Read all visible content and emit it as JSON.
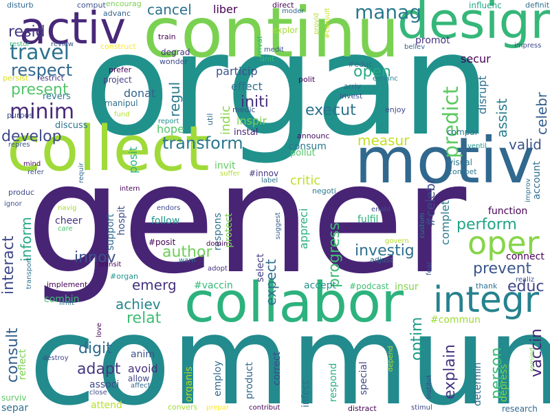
{
  "words": [
    {
      "text": "organ",
      "color": "#21918c"
    },
    {
      "text": "gener",
      "color": "#482475"
    },
    {
      "text": "commun",
      "color": "#238a8d"
    },
    {
      "text": "continu",
      "color": "#7ad151"
    },
    {
      "text": "collabor",
      "color": "#2db27d"
    },
    {
      "text": "motiv",
      "color": "#31688e"
    },
    {
      "text": "collect",
      "color": "#a0da39"
    },
    {
      "text": "design",
      "color": "#35b779"
    },
    {
      "text": "activ",
      "color": "#482878"
    },
    {
      "text": "integr",
      "color": "#26828e"
    },
    {
      "text": "travel",
      "color": "#2c728e"
    },
    {
      "text": "oper",
      "color": "#86d549"
    },
    {
      "text": "respect",
      "color": "#31688e"
    },
    {
      "text": "minim",
      "color": "#482878"
    },
    {
      "text": "present",
      "color": "#52c569"
    },
    {
      "text": "predict",
      "color": "#5ec962"
    },
    {
      "text": "manag",
      "color": "#2a788e"
    },
    {
      "text": "resid",
      "color": "#443a83"
    },
    {
      "text": "cancel",
      "color": "#2c728e"
    },
    {
      "text": "develop",
      "color": "#3e4989"
    },
    {
      "text": "transform",
      "color": "#2a788e"
    },
    {
      "text": "author",
      "color": "#6ece58"
    },
    {
      "text": "investig",
      "color": "#2d708e"
    },
    {
      "text": "perform",
      "color": "#20a486"
    },
    {
      "text": "prevent",
      "color": "#39558c"
    },
    {
      "text": "educ",
      "color": "#414487"
    },
    {
      "text": "relat",
      "color": "#3fbc73"
    },
    {
      "text": "achiev",
      "color": "#25858e"
    },
    {
      "text": "emerg",
      "color": "#46327e"
    },
    {
      "text": "innov",
      "color": "#3b528b"
    },
    {
      "text": "digit",
      "color": "#306a8e"
    },
    {
      "text": "adapt",
      "color": "#453781"
    },
    {
      "text": "measur",
      "color": "#c2df23"
    },
    {
      "text": "execut",
      "color": "#2c728e"
    },
    {
      "text": "open",
      "color": "#25ab82"
    },
    {
      "text": "valid",
      "color": "#3b528b"
    },
    {
      "text": "celebr",
      "color": "#35608d"
    },
    {
      "text": "vaccin",
      "color": "#482475"
    },
    {
      "text": "person",
      "color": "#3aba76"
    },
    {
      "text": "explain",
      "color": "#463480"
    },
    {
      "text": "optim",
      "color": "#1f9a8a"
    },
    {
      "text": "progress",
      "color": "#3fbc73"
    },
    {
      "text": "expect",
      "color": "#2e6e8e"
    },
    {
      "text": "consult",
      "color": "#34608d"
    },
    {
      "text": "interact",
      "color": "#3e4989"
    },
    {
      "text": "inform",
      "color": "#22a884"
    },
    {
      "text": "regul",
      "color": "#2a788e"
    },
    {
      "text": "initi",
      "color": "#472d7b"
    },
    {
      "text": "indic",
      "color": "#89d548"
    },
    {
      "text": "assist",
      "color": "#277f8e"
    },
    {
      "text": "critic",
      "color": "#bddf26"
    },
    {
      "text": "liber",
      "color": "#440154"
    },
    {
      "text": "particip",
      "color": "#3b528b"
    },
    {
      "text": "effect",
      "color": "#2e6f8e"
    },
    {
      "text": "inspir",
      "color": "#75d054"
    },
    {
      "text": "donat",
      "color": "#33638d"
    },
    {
      "text": "hope",
      "color": "#52c569"
    },
    {
      "text": "posit",
      "color": "#2db27d"
    },
    {
      "text": "secur",
      "color": "#440154"
    },
    {
      "text": "promot",
      "color": "#46337f"
    },
    {
      "text": "disrupt",
      "color": "#2e6f8e"
    },
    {
      "text": "consum",
      "color": "#2a788e"
    },
    {
      "text": "invit",
      "color": "#63cb5f"
    },
    {
      "text": "#innov",
      "color": "#46337f"
    },
    {
      "text": "#celebr",
      "color": "#3e4a89"
    },
    {
      "text": "complet",
      "color": "#2a788e"
    },
    {
      "text": "appreci",
      "color": "#29af7f"
    },
    {
      "text": "respons",
      "color": "#2c728e"
    },
    {
      "text": "protect",
      "color": "#7ad151"
    },
    {
      "text": "support",
      "color": "#2f6b8e"
    },
    {
      "text": "hospit",
      "color": "#3d4e8a"
    },
    {
      "text": "follow",
      "color": "#1f948c"
    },
    {
      "text": "fulfil",
      "color": "#2db27d"
    },
    {
      "text": "function",
      "color": "#440154"
    },
    {
      "text": "connect",
      "color": "#440154"
    },
    {
      "text": "account",
      "color": "#2d708e"
    },
    {
      "text": "#vaccin",
      "color": "#35b779"
    },
    {
      "text": "accept",
      "color": "#21918c"
    },
    {
      "text": "#podcast",
      "color": "#3fbc73"
    },
    {
      "text": "insur",
      "color": "#7fd34e"
    },
    {
      "text": "#commun",
      "color": "#a0da39"
    },
    {
      "text": "combin",
      "color": "#3fbc73"
    },
    {
      "text": "select",
      "color": "#433e85"
    },
    {
      "text": "anim",
      "color": "#3b528b"
    },
    {
      "text": "avoid",
      "color": "#472f7d"
    },
    {
      "text": "allow",
      "color": "#414487"
    },
    {
      "text": "employ",
      "color": "#306a8e"
    },
    {
      "text": "product",
      "color": "#31688e"
    },
    {
      "text": "correct",
      "color": "#3e4989"
    },
    {
      "text": "infect",
      "color": "#2d708e"
    },
    {
      "text": "respond",
      "color": "#29af7f"
    },
    {
      "text": "special",
      "color": "#3e4989"
    },
    {
      "text": "determin",
      "color": "#306a8e"
    },
    {
      "text": "depress",
      "color": "#7fd34e"
    },
    {
      "text": "reflect",
      "color": "#7ad151"
    },
    {
      "text": "associ",
      "color": "#3e4989"
    },
    {
      "text": "surviv",
      "color": "#5ec962"
    },
    {
      "text": "separ",
      "color": "#2c728e"
    },
    {
      "text": "attend",
      "color": "#b5de2b"
    },
    {
      "text": "research",
      "color": "#31688e"
    },
    {
      "text": "organis",
      "color": "#b5de2b"
    },
    {
      "text": "cheer",
      "color": "#46327e"
    },
    {
      "text": "disturb",
      "color": "#31688e"
    },
    {
      "text": "comput",
      "color": "#3b528b"
    },
    {
      "text": "encourag",
      "color": "#7ad151"
    },
    {
      "text": "advanc",
      "color": "#33638d"
    },
    {
      "text": "construct",
      "color": "#fde725"
    },
    {
      "text": "restor",
      "color": "#3aba76"
    },
    {
      "text": "review",
      "color": "#3b528b"
    },
    {
      "text": "train",
      "color": "#440154"
    },
    {
      "text": "explor",
      "color": "#a5db36"
    },
    {
      "text": "influenc",
      "color": "#22a884"
    },
    {
      "text": "definit",
      "color": "#2e6e8e"
    },
    {
      "text": "impress",
      "color": "#3e4989"
    },
    {
      "text": "direct",
      "color": "#440154"
    },
    {
      "text": "moder",
      "color": "#306a8e"
    },
    {
      "text": "provid",
      "color": "#b5de2b"
    },
    {
      "text": "#consult",
      "color": "#c8e020"
    },
    {
      "text": "believ",
      "color": "#33638d"
    },
    {
      "text": "persist",
      "color": "#d8e219"
    },
    {
      "text": "restrict",
      "color": "#463480"
    },
    {
      "text": "revers",
      "color": "#2a788e"
    },
    {
      "text": "prefer",
      "color": "#440154"
    },
    {
      "text": "project",
      "color": "#433e85"
    },
    {
      "text": "manipul",
      "color": "#2e6e8e"
    },
    {
      "text": "wonder",
      "color": "#3e4989"
    },
    {
      "text": "degrad",
      "color": "#46327e"
    },
    {
      "text": "privat",
      "color": "#35b779"
    },
    {
      "text": "medit",
      "color": "#39568c"
    },
    {
      "text": "unit",
      "color": "#35b779"
    },
    {
      "text": "polit",
      "color": "#440154"
    },
    {
      "text": "#educ",
      "color": "#2d708e"
    },
    {
      "text": "enhanc",
      "color": "#26828e"
    },
    {
      "text": "arriv",
      "color": "#33638d"
    },
    {
      "text": "invest",
      "color": "#3b528b"
    },
    {
      "text": "enjoy",
      "color": "#3f4788"
    },
    {
      "text": "medic",
      "color": "#3b528b"
    },
    {
      "text": "instal",
      "color": "#482475"
    },
    {
      "text": "util",
      "color": "#31688e"
    },
    {
      "text": "announc",
      "color": "#470d60"
    },
    {
      "text": "pollut",
      "color": "#52c569"
    },
    {
      "text": "compar",
      "color": "#2c728e"
    },
    {
      "text": "ventil",
      "color": "#1f948c"
    },
    {
      "text": "purpos",
      "color": "#3e4a89"
    },
    {
      "text": "discuss",
      "color": "#2c728e"
    },
    {
      "text": "fund",
      "color": "#b5de2b"
    },
    {
      "text": "report",
      "color": "#21918c"
    },
    {
      "text": "repres",
      "color": "#3b528b"
    },
    {
      "text": "mind",
      "color": "#450559"
    },
    {
      "text": "refer",
      "color": "#3b528b"
    },
    {
      "text": "requir",
      "color": "#306a8e"
    },
    {
      "text": "suffer",
      "color": "#b5de2b"
    },
    {
      "text": "label",
      "color": "#2d708e"
    },
    {
      "text": "negoti",
      "color": "#2a788e"
    },
    {
      "text": "visual",
      "color": "#2a788e"
    },
    {
      "text": "compet",
      "color": "#2a788e"
    },
    {
      "text": "improv",
      "color": "#2c728e"
    },
    {
      "text": "produc",
      "color": "#3f4788"
    },
    {
      "text": "ignor",
      "color": "#3b528b"
    },
    {
      "text": "intern",
      "color": "#440154"
    },
    {
      "text": "navig",
      "color": "#a5db36"
    },
    {
      "text": "care",
      "color": "#4ac16d"
    },
    {
      "text": "endors",
      "color": "#3e4989"
    },
    {
      "text": "suggest",
      "color": "#33638d"
    },
    {
      "text": "enabl",
      "color": "#3e4989"
    },
    {
      "text": "custom",
      "color": "#26828e"
    },
    {
      "text": "#posit",
      "color": "#440154"
    },
    {
      "text": "domin",
      "color": "#440154"
    },
    {
      "text": "govern",
      "color": "#b5de2b"
    },
    {
      "text": "adjust",
      "color": "#2e6e8e"
    },
    {
      "text": "fear",
      "color": "#3b528b"
    },
    {
      "text": "warn",
      "color": "#2a788e"
    },
    {
      "text": "transit",
      "color": "#440154"
    },
    {
      "text": "transport",
      "color": "#2c728e"
    },
    {
      "text": "adopt",
      "color": "#46327e"
    },
    {
      "text": "#organ",
      "color": "#1f948c"
    },
    {
      "text": "implement",
      "color": "#440154"
    },
    {
      "text": "limit",
      "color": "#2c728e"
    },
    {
      "text": "thank",
      "color": "#2d708e"
    },
    {
      "text": "realiz",
      "color": "#3b528b"
    },
    {
      "text": "love",
      "color": "#440154"
    },
    {
      "text": "destroy",
      "color": "#3e4989"
    },
    {
      "text": "close",
      "color": "#3e4989"
    },
    {
      "text": "affect",
      "color": "#306a8e"
    },
    {
      "text": "depend",
      "color": "#b5de2b"
    },
    {
      "text": "institut",
      "color": "#3e4989"
    },
    {
      "text": "remind",
      "color": "#7ad151"
    },
    {
      "text": "convers",
      "color": "#a5db36"
    },
    {
      "text": "prepar",
      "color": "#fde725"
    },
    {
      "text": "contribut",
      "color": "#440154"
    },
    {
      "text": "distract",
      "color": "#440154"
    },
    {
      "text": "stimul",
      "color": "#3e4989"
    }
  ]
}
